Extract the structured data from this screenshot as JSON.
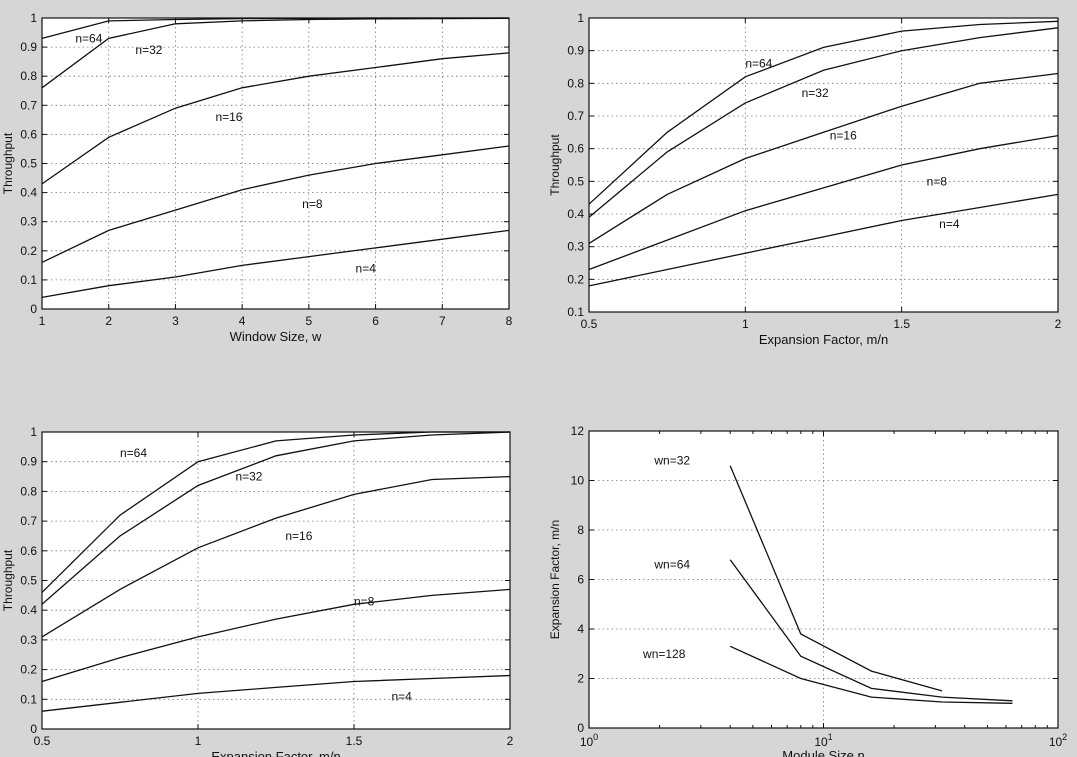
{
  "chart_data": [
    {
      "type": "line",
      "xlabel": "Window Size, w",
      "ylabel": "Throughput",
      "xlim": [
        1,
        8
      ],
      "ylim": [
        0,
        1
      ],
      "xscale": "linear",
      "grid": true,
      "xticks": [
        1,
        2,
        3,
        4,
        5,
        6,
        7,
        8
      ],
      "yticks": [
        0,
        0.1,
        0.2,
        0.3,
        0.4,
        0.5,
        0.6,
        0.7,
        0.8,
        0.9,
        1
      ],
      "series": [
        {
          "name": "n=64",
          "x": [
            1,
            2,
            3,
            4,
            5,
            6,
            7,
            8
          ],
          "y": [
            0.93,
            0.99,
            0.995,
            0.998,
            0.999,
            1.0,
            1.0,
            1.0
          ],
          "label_at": [
            1.5,
            0.93
          ]
        },
        {
          "name": "n=32",
          "x": [
            1,
            2,
            3,
            4,
            5,
            6,
            7,
            8
          ],
          "y": [
            0.76,
            0.93,
            0.98,
            0.99,
            0.995,
            0.997,
            0.998,
            0.999
          ],
          "label_at": [
            2.4,
            0.89
          ]
        },
        {
          "name": "n=16",
          "x": [
            1,
            2,
            3,
            4,
            5,
            6,
            7,
            8
          ],
          "y": [
            0.43,
            0.59,
            0.69,
            0.76,
            0.8,
            0.83,
            0.86,
            0.88
          ],
          "label_at": [
            3.6,
            0.66
          ]
        },
        {
          "name": "n=8",
          "x": [
            1,
            2,
            3,
            4,
            5,
            6,
            7,
            8
          ],
          "y": [
            0.16,
            0.27,
            0.34,
            0.41,
            0.46,
            0.5,
            0.53,
            0.56
          ],
          "label_at": [
            4.9,
            0.36
          ]
        },
        {
          "name": "n=4",
          "x": [
            1,
            2,
            3,
            4,
            5,
            6,
            7,
            8
          ],
          "y": [
            0.04,
            0.08,
            0.11,
            0.15,
            0.18,
            0.21,
            0.24,
            0.27
          ],
          "label_at": [
            5.7,
            0.14
          ]
        }
      ]
    },
    {
      "type": "line",
      "xlabel": "Expansion Factor, m/n",
      "ylabel": "Throughput",
      "xlim": [
        0.5,
        2
      ],
      "ylim": [
        0.1,
        1
      ],
      "xscale": "linear",
      "grid": true,
      "xticks": [
        0.5,
        1,
        1.5,
        2
      ],
      "yticks": [
        0.1,
        0.2,
        0.3,
        0.4,
        0.5,
        0.6,
        0.7,
        0.8,
        0.9,
        1
      ],
      "series": [
        {
          "name": "n=64",
          "x": [
            0.5,
            0.75,
            1,
            1.25,
            1.5,
            1.75,
            2
          ],
          "y": [
            0.43,
            0.65,
            0.82,
            0.91,
            0.96,
            0.98,
            0.99
          ],
          "label_at": [
            1.0,
            0.86
          ]
        },
        {
          "name": "n=32",
          "x": [
            0.5,
            0.75,
            1,
            1.25,
            1.5,
            1.75,
            2
          ],
          "y": [
            0.39,
            0.59,
            0.74,
            0.84,
            0.9,
            0.94,
            0.97
          ],
          "label_at": [
            1.18,
            0.77
          ]
        },
        {
          "name": "n=16",
          "x": [
            0.5,
            0.75,
            1,
            1.25,
            1.5,
            1.75,
            2
          ],
          "y": [
            0.31,
            0.46,
            0.57,
            0.65,
            0.73,
            0.8,
            0.83
          ],
          "label_at": [
            1.27,
            0.64
          ]
        },
        {
          "name": "n=8",
          "x": [
            0.5,
            0.75,
            1,
            1.25,
            1.5,
            1.75,
            2
          ],
          "y": [
            0.23,
            0.32,
            0.41,
            0.48,
            0.55,
            0.6,
            0.64
          ],
          "label_at": [
            1.58,
            0.5
          ]
        },
        {
          "name": "n=4",
          "x": [
            0.5,
            0.75,
            1,
            1.25,
            1.5,
            1.75,
            2
          ],
          "y": [
            0.18,
            0.23,
            0.28,
            0.33,
            0.38,
            0.42,
            0.46
          ],
          "label_at": [
            1.62,
            0.37
          ]
        }
      ]
    },
    {
      "type": "line",
      "xlabel": "Expansion Factor, m/n",
      "ylabel": "Throughput",
      "xlim": [
        0.5,
        2
      ],
      "ylim": [
        0,
        1
      ],
      "xscale": "linear",
      "grid": true,
      "xticks": [
        0.5,
        1,
        1.5,
        2
      ],
      "yticks": [
        0,
        0.1,
        0.2,
        0.3,
        0.4,
        0.5,
        0.6,
        0.7,
        0.8,
        0.9,
        1
      ],
      "series": [
        {
          "name": "n=64",
          "x": [
            0.5,
            0.75,
            1,
            1.25,
            1.5,
            1.75,
            2
          ],
          "y": [
            0.46,
            0.72,
            0.9,
            0.97,
            0.99,
            1.0,
            1.0
          ],
          "label_at": [
            0.75,
            0.93
          ]
        },
        {
          "name": "n=32",
          "x": [
            0.5,
            0.75,
            1,
            1.25,
            1.5,
            1.75,
            2
          ],
          "y": [
            0.42,
            0.65,
            0.82,
            0.92,
            0.97,
            0.99,
            1.0
          ],
          "label_at": [
            1.12,
            0.85
          ]
        },
        {
          "name": "n=16",
          "x": [
            0.5,
            0.75,
            1,
            1.25,
            1.5,
            1.75,
            2
          ],
          "y": [
            0.31,
            0.47,
            0.61,
            0.71,
            0.79,
            0.84,
            0.85
          ],
          "label_at": [
            1.28,
            0.65
          ]
        },
        {
          "name": "n=8",
          "x": [
            0.5,
            0.75,
            1,
            1.25,
            1.5,
            1.75,
            2
          ],
          "y": [
            0.16,
            0.24,
            0.31,
            0.37,
            0.42,
            0.45,
            0.47
          ],
          "label_at": [
            1.5,
            0.43
          ]
        },
        {
          "name": "n=4",
          "x": [
            0.5,
            0.75,
            1,
            1.25,
            1.5,
            1.75,
            2
          ],
          "y": [
            0.06,
            0.09,
            0.12,
            0.14,
            0.16,
            0.17,
            0.18
          ],
          "label_at": [
            1.62,
            0.11
          ]
        }
      ]
    },
    {
      "type": "line",
      "xlabel": "Module Size n",
      "ylabel": "Expansion Factor, m/n",
      "xlim": [
        1,
        100
      ],
      "ylim": [
        0,
        12
      ],
      "xscale": "log",
      "grid": true,
      "xticks": [
        1,
        10,
        100
      ],
      "xtick_labels": [
        [
          "10",
          "0"
        ],
        [
          "10",
          "1"
        ],
        [
          "10",
          "2"
        ]
      ],
      "yticks": [
        0,
        2,
        4,
        6,
        8,
        10,
        12
      ],
      "series": [
        {
          "name": "wn=32",
          "x": [
            4,
            8,
            16,
            32
          ],
          "y": [
            10.6,
            3.8,
            2.3,
            1.5
          ],
          "label_at": [
            1.9,
            10.8
          ]
        },
        {
          "name": "wn=64",
          "x": [
            4,
            8,
            16,
            32,
            64
          ],
          "y": [
            6.8,
            2.9,
            1.6,
            1.25,
            1.1
          ],
          "label_at": [
            1.9,
            6.6
          ]
        },
        {
          "name": "wn=128",
          "x": [
            4,
            8,
            16,
            32,
            64
          ],
          "y": [
            3.3,
            2.0,
            1.25,
            1.05,
            1.0
          ],
          "label_at": [
            1.7,
            3.0
          ]
        }
      ]
    }
  ]
}
